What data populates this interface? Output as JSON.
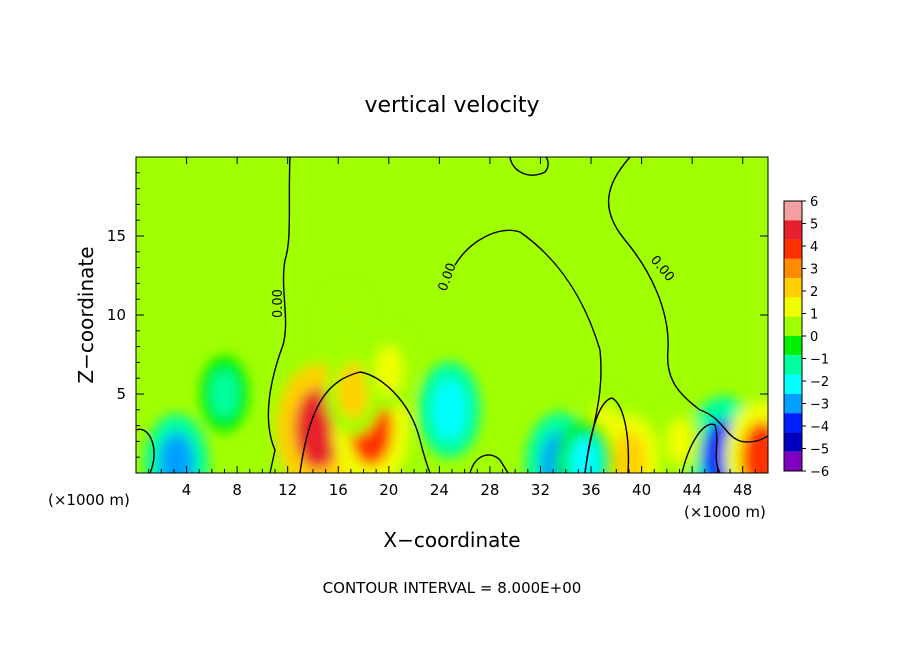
{
  "chart_data": {
    "type": "heatmap",
    "title": "vertical velocity",
    "xlabel": "X−coordinate",
    "ylabel": "Z−coordinate",
    "x_unit_left": "(×1000 m)",
    "x_unit_right": "(×1000 m)",
    "footer": "CONTOUR INTERVAL = 8.000E+00",
    "contour_label": "0.00",
    "xlim": [
      0,
      50
    ],
    "ylim": [
      0,
      20
    ],
    "x_ticks": [
      4,
      8,
      12,
      16,
      20,
      24,
      28,
      32,
      36,
      40,
      44,
      48
    ],
    "y_ticks": [
      5,
      10,
      15
    ],
    "colorbar": {
      "range": [
        -6,
        6
      ],
      "labels": [
        "6",
        "5",
        "4",
        "3",
        "2",
        "1",
        "0",
        "−1",
        "−2",
        "−3",
        "−4",
        "−5",
        "−6"
      ],
      "colors": [
        "#f4a0a0",
        "#e8202c",
        "#ff3000",
        "#ff8c00",
        "#ffd000",
        "#f0ff00",
        "#a0ff00",
        "#00f000",
        "#00ffa0",
        "#00ffff",
        "#00a0ff",
        "#0020ff",
        "#0000c0",
        "#8000c0"
      ]
    },
    "background_value": 0.1,
    "features": [
      {
        "x": 14.4,
        "z": 2.8,
        "value": 4.5
      },
      {
        "x": 18.6,
        "z": 2.8,
        "value": 3.8
      },
      {
        "x": 17.2,
        "z": 5.2,
        "value": 2.0
      },
      {
        "x": 20.0,
        "z": 6.5,
        "value": 1.4
      },
      {
        "x": 16.5,
        "z": 9.5,
        "value": 0.8
      },
      {
        "x": 24.8,
        "z": 4.0,
        "value": -2.4
      },
      {
        "x": 7.0,
        "z": 5.0,
        "value": -1.2
      },
      {
        "x": 37.0,
        "z": 3.0,
        "value": 0.9
      },
      {
        "x": 46.5,
        "z": 1.0,
        "value": -4.0
      },
      {
        "x": 49.5,
        "z": 1.0,
        "value": 3.5
      },
      {
        "x": 3.2,
        "z": 0.6,
        "value": -2.6
      },
      {
        "x": 33.5,
        "z": 0.5,
        "value": -3.0
      },
      {
        "x": 39.0,
        "z": 0.8,
        "value": 2.2
      },
      {
        "x": 35.5,
        "z": 0.6,
        "value": -2.0
      },
      {
        "x": 43.0,
        "z": 2.0,
        "value": 1.0
      }
    ]
  }
}
